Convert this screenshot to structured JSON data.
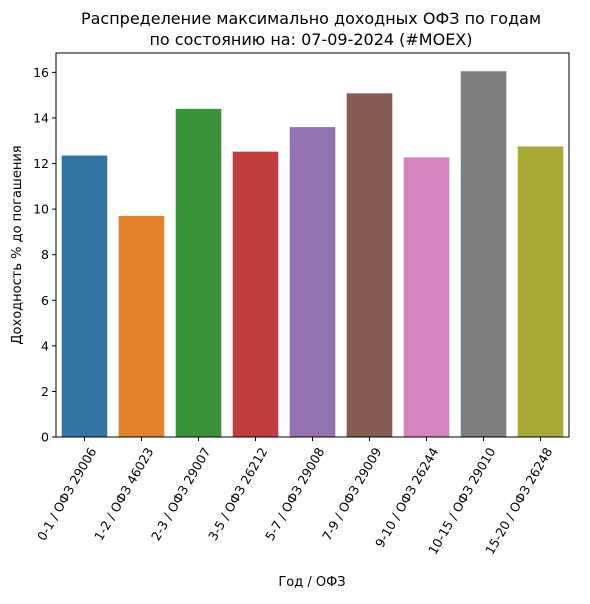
{
  "chart_data": {
    "type": "bar",
    "title": "Распределение максимально доходных ОФЗ по годам",
    "subtitle": "по состоянию на: 07-09-2024 (#MOEX)",
    "xlabel": "Год / ОФЗ",
    "ylabel": "Доходность % до погашения",
    "ylim": [
      0,
      16.85
    ],
    "yticks": [
      0,
      2,
      4,
      6,
      8,
      10,
      12,
      14,
      16
    ],
    "ytick_labels": [
      "0",
      "2",
      "4",
      "6",
      "8",
      "10",
      "12",
      "14",
      "16"
    ],
    "grid": false,
    "categories": [
      "0-1 / ОФЗ 29006",
      "1-2 / ОФЗ 46023",
      "2-3 / ОФЗ 29007",
      "3-5 / ОФЗ 26212",
      "5-7 / ОФЗ 29008",
      "7-9 / ОФЗ 29009",
      "9-10 / ОФЗ 26244",
      "10-15 / ОФЗ 29010",
      "15-20 / ОФЗ 26248"
    ],
    "values": [
      12.35,
      9.7,
      14.4,
      12.52,
      13.6,
      15.08,
      12.27,
      16.05,
      12.75
    ],
    "colors": [
      "#3274a1",
      "#e1812c",
      "#3a923a",
      "#c03d3e",
      "#9372b2",
      "#845b53",
      "#d684bd",
      "#7f7f7f",
      "#a9aa35"
    ]
  }
}
